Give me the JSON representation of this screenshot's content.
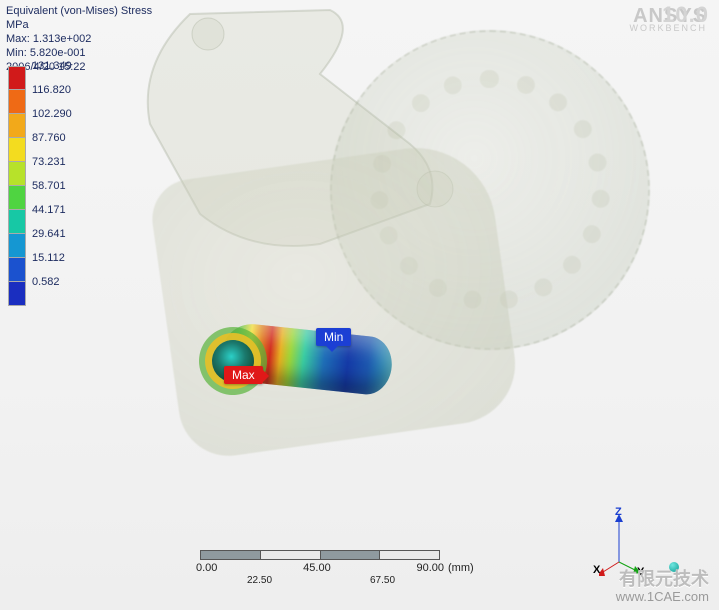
{
  "header": {
    "result_type": "Equivalent (von-Mises) Stress",
    "unit": "MPa",
    "max_label": "Max: 1.313e+002",
    "min_label": "Min: 5.820e-001",
    "timestamp": "2006/4/20 15:22"
  },
  "brand": {
    "name": "ANSYS",
    "subtitle": "WORKBENCH",
    "version": "10.0"
  },
  "legend": {
    "labels": [
      "131.349",
      "116.820",
      "102.290",
      "87.760",
      "73.231",
      "58.701",
      "44.171",
      "29.641",
      "15.112",
      "0.582"
    ],
    "colors": [
      "#d11a1a",
      "#ef6a15",
      "#f2a91a",
      "#f3dc1f",
      "#b7e22a",
      "#4fd441",
      "#17c8a5",
      "#1597d2",
      "#1b52cf",
      "#1a2ec0"
    ]
  },
  "markers": {
    "max": "Max",
    "min": "Min"
  },
  "scalebar": {
    "unit": "(mm)",
    "major": [
      "0.00",
      "45.00",
      "90.00"
    ],
    "minor": [
      "",
      "22.50",
      "",
      "67.50",
      ""
    ]
  },
  "triad": {
    "x": "X",
    "y": "Y",
    "z": "Z",
    "colors": {
      "x": "#d11a1a",
      "y": "#13a313",
      "z": "#1b3fd0"
    }
  },
  "watermark": {
    "text_cn": "有限元技术",
    "url": "www.1CAE.com"
  },
  "viewport": {
    "background_top": "#f5f5f5",
    "background_bottom": "#eeeeee"
  }
}
